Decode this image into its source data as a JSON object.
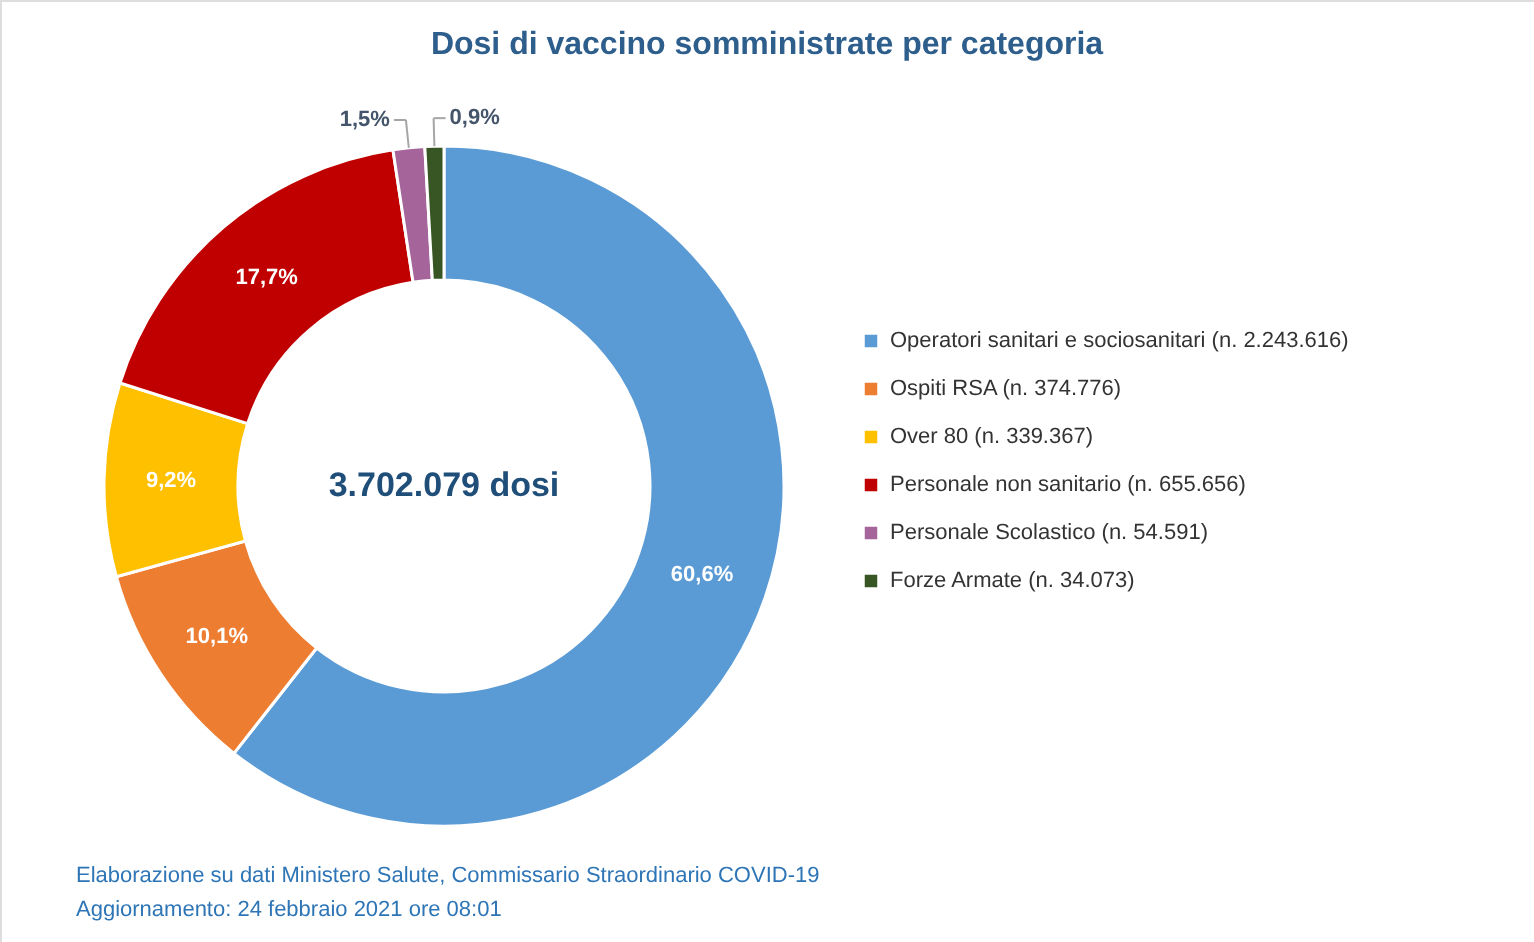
{
  "chart_data": {
    "type": "donut",
    "title": "Dosi di vaccino somministrate per categoria",
    "categories": [
      "Operatori sanitari e sociosanitari (n. 2.243.616)",
      "Ospiti RSA (n. 374.776)",
      "Over 80 (n. 339.367)",
      "Personale non sanitario (n. 655.656)",
      "Personale Scolastico (n. 54.591)",
      "Forze Armate (n. 34.073)"
    ],
    "values": [
      60.6,
      10.1,
      9.2,
      17.7,
      1.5,
      0.9
    ],
    "value_labels": [
      "60,6%",
      "10,1%",
      "9,2%",
      "17,7%",
      "1,5%",
      "0,9%"
    ],
    "colors": [
      "#5b9bd5",
      "#ed7d31",
      "#ffc000",
      "#c00000",
      "#a5659a",
      "#375623"
    ],
    "legend": "right",
    "annotations": [
      "3.702.079 dosi",
      "Elaborazione su dati Ministero Salute, Commissario Straordinario COVID-19",
      "Aggiornamento: 24 febbraio 2021 ore 08:01"
    ]
  }
}
